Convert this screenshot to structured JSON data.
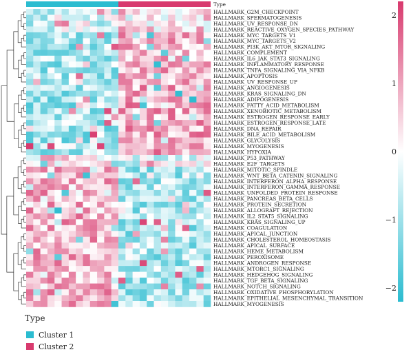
{
  "chart_data": {
    "type": "heatmap",
    "annotation_label": "Type",
    "columns": 26,
    "groups": [
      {
        "name": "Cluster 1",
        "count": 13,
        "color": "#2bbcd0"
      },
      {
        "name": "Cluster 2",
        "count": 13,
        "color": "#d83a6e"
      }
    ],
    "rows": [
      "HALLMARK_G2M_CHECKPOINT",
      "HALLMARK_SPERMATOGENESIS",
      "HALLMARK_UV_RESPONSE_DN",
      "HALLMARK_REACTIVE_OXYGEN_SPECIES_PATHWAY",
      "HALLMARK_MYC_TARGETS_V1",
      "HALLMARK_MYC_TARGETS_V2",
      "HALLMARK_PI3K_AKT_MTOR_SIGNALING",
      "HALLMARK_COMPLEMENT",
      "HALLMARK_IL6_JAK_STAT3_SIGNALING",
      "HALLMARK_INFLAMMATORY_RESPONSE",
      "HALLMARK_TNFA_SIGNALING_VIA_NFKB",
      "HALLMARK_APOPTOSIS",
      "HALLMARK_UV_RESPONSE_UP",
      "HALLMARK_ANGIOGENESIS",
      "HALLMARK_KRAS_SIGNALING_DN",
      "HALLMARK_ADIPOGENESIS",
      "HALLMARK_FATTY_ACID_METABOLISM",
      "HALLMARK_XENOBIOTIC_METABOLISM",
      "HALLMARK_ESTROGEN_RESPONSE_EARLY",
      "HALLMARK_ESTROGEN_RESPONSE_LATE",
      "HALLMARK_DNA_REPAIR",
      "HALLMARK_BILE_ACID_METABOLISM",
      "HALLMARK_GLYCOLYSIS",
      "HALLMARK_MYOGENESIS",
      "HALLMARK_HYPOXIA",
      "HALLMARK_P53_PATHWAY",
      "HALLMARK_E2F_TARGETS",
      "HALLMARK_MITOTIC_SPINDLE",
      "HALLMARK_WNT_BETA_CATENIN_SIGNALING",
      "HALLMARK_INTERFERON_ALPHA_RESPONSE",
      "HALLMARK_INTERFERON_GAMMA_RESPONSE",
      "HALLMARK_UNFOLDED_PROTEIN_RESPONSE",
      "HALLMARK_PANCREAS_BETA_CELLS",
      "HALLMARK_PROTEIN_SECRETION",
      "HALLMARK_ALLOGRAFT_REJECTION",
      "HALLMARK_IL2_STAT5_SIGNALING",
      "HALLMARK_KRAS_SIGNALING_UP",
      "HALLMARK_COAGULATION",
      "HALLMARK_APICAL_JUNCTION",
      "HALLMARK_CHOLESTEROL_HOMEOSTASIS",
      "HALLMARK_APICAL_SURFACE",
      "HALLMARK_HEME_METABOLISM",
      "HALLMARK_PEROXISOME",
      "HALLMARK_ANDROGEN_RESPONSE",
      "HALLMARK_MTORC1_SIGNALING",
      "HALLMARK_HEDGEHOG_SIGNALING",
      "HALLMARK_TGF_BETA_SIGNALING",
      "HALLMARK_NOTCH_SIGNALING",
      "HALLMARK_OXIDATIVE_PHOSPHORYLATION",
      "HALLMARK_EPITHELIAL_MESENCHYMAL_TRANSITION",
      "HALLMARK_MYOGENESIS"
    ],
    "upper_block_rows": 25,
    "colorbar": {
      "ticks": [
        2,
        1,
        0,
        -1,
        -2
      ],
      "tick_labels": [
        "2",
        "1",
        "0",
        "−1",
        "−2"
      ],
      "range": [
        -2.2,
        2.2
      ],
      "high_color": "#d83a6e",
      "mid_color": "#ffffff",
      "low_color": "#2bbcd0"
    },
    "legend": {
      "title": "Type",
      "entries": [
        "Cluster 1",
        "Cluster 2"
      ]
    }
  }
}
